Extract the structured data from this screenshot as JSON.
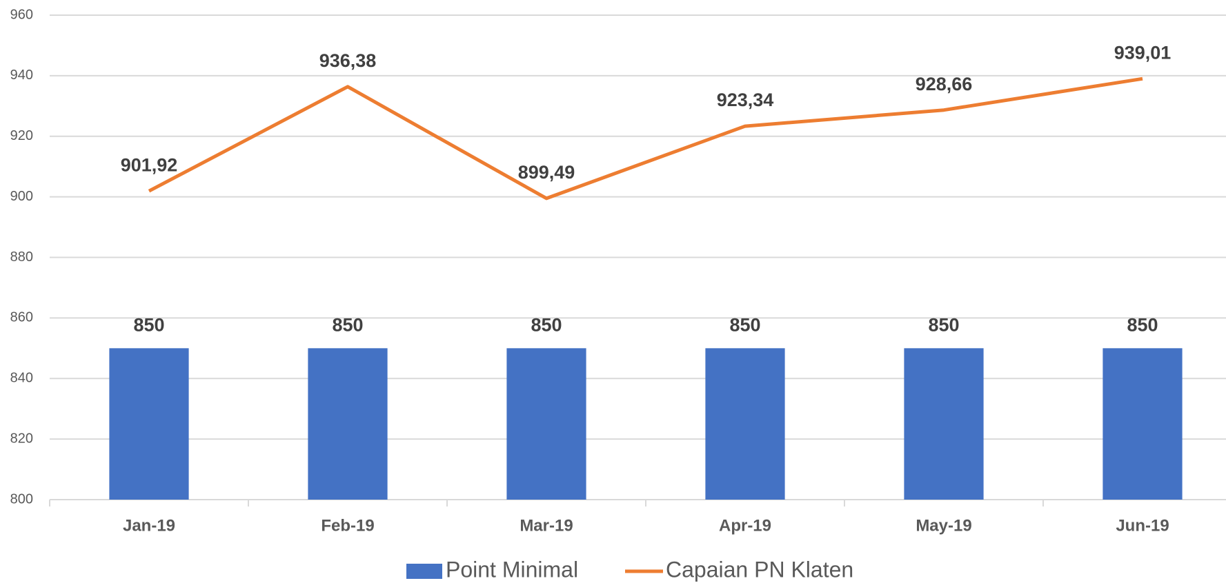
{
  "chart_data": {
    "type": "bar-line",
    "categories": [
      "Jan-19",
      "Feb-19",
      "Mar-19",
      "Apr-19",
      "May-19",
      "Jun-19"
    ],
    "series": [
      {
        "name": "Point Minimal",
        "type": "bar",
        "color": "#4472c4",
        "values": [
          850,
          850,
          850,
          850,
          850,
          850
        ]
      },
      {
        "name": "Capaian PN Klaten",
        "type": "line",
        "color": "#ed7d31",
        "values": [
          901.92,
          936.38,
          899.49,
          923.34,
          928.66,
          939.01
        ],
        "value_labels": [
          "901,92",
          "936,38",
          "899,49",
          "923,34",
          "928,66",
          "939,01"
        ]
      }
    ],
    "ylim": [
      800,
      960
    ],
    "yticks": [
      800,
      820,
      840,
      860,
      880,
      900,
      920,
      940,
      960
    ],
    "grid": true,
    "legend": "bottom"
  }
}
